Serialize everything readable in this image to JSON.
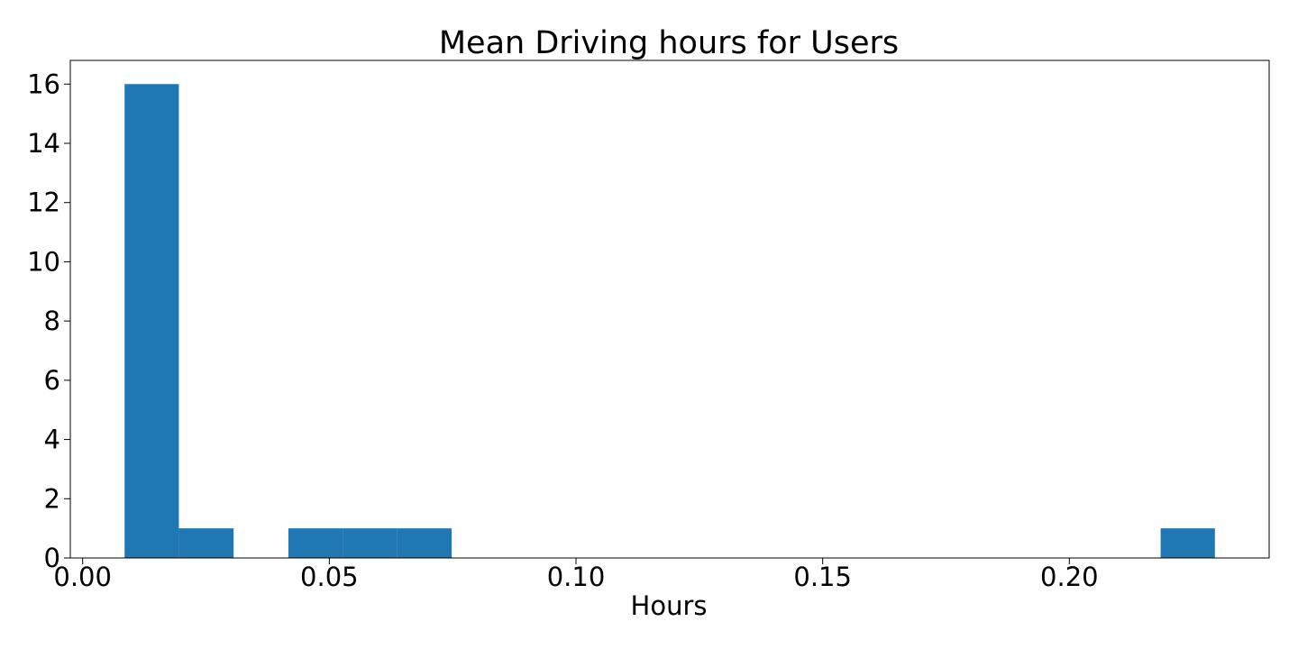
{
  "chart_data": {
    "type": "bar",
    "title": "Mean Driving hours for Users",
    "xlabel": "Hours",
    "ylabel": "",
    "xlim": [
      -0.0025,
      0.2405
    ],
    "ylim": [
      0,
      16.8
    ],
    "grid": false,
    "bar_color": "#1f77b4",
    "x_ticks": [
      0.0,
      0.05,
      0.1,
      0.15,
      0.2
    ],
    "x_tick_labels": [
      "0.00",
      "0.05",
      "0.10",
      "0.15",
      "0.20"
    ],
    "y_ticks": [
      0,
      2,
      4,
      6,
      8,
      10,
      12,
      14,
      16
    ],
    "y_tick_labels": [
      "0",
      "2",
      "4",
      "6",
      "8",
      "10",
      "12",
      "14",
      "16"
    ],
    "bins": [
      {
        "x0": 0.0085,
        "x1": 0.0195,
        "count": 16
      },
      {
        "x0": 0.0195,
        "x1": 0.0306,
        "count": 1
      },
      {
        "x0": 0.0306,
        "x1": 0.0417,
        "count": 0
      },
      {
        "x0": 0.0417,
        "x1": 0.0527,
        "count": 1
      },
      {
        "x0": 0.0527,
        "x1": 0.0638,
        "count": 1
      },
      {
        "x0": 0.0638,
        "x1": 0.0748,
        "count": 1
      },
      {
        "x0": 0.0748,
        "x1": 0.0859,
        "count": 0
      },
      {
        "x0": 0.0859,
        "x1": 0.0969,
        "count": 0
      },
      {
        "x0": 0.0969,
        "x1": 0.108,
        "count": 0
      },
      {
        "x0": 0.108,
        "x1": 0.119,
        "count": 0
      },
      {
        "x0": 0.119,
        "x1": 0.1301,
        "count": 0
      },
      {
        "x0": 0.1301,
        "x1": 0.1411,
        "count": 0
      },
      {
        "x0": 0.1411,
        "x1": 0.1522,
        "count": 0
      },
      {
        "x0": 0.1522,
        "x1": 0.1632,
        "count": 0
      },
      {
        "x0": 0.1632,
        "x1": 0.1743,
        "count": 0
      },
      {
        "x0": 0.1743,
        "x1": 0.1853,
        "count": 0
      },
      {
        "x0": 0.1853,
        "x1": 0.1964,
        "count": 0
      },
      {
        "x0": 0.1964,
        "x1": 0.2074,
        "count": 0
      },
      {
        "x0": 0.2074,
        "x1": 0.2185,
        "count": 0
      },
      {
        "x0": 0.2185,
        "x1": 0.2295,
        "count": 1
      }
    ]
  }
}
